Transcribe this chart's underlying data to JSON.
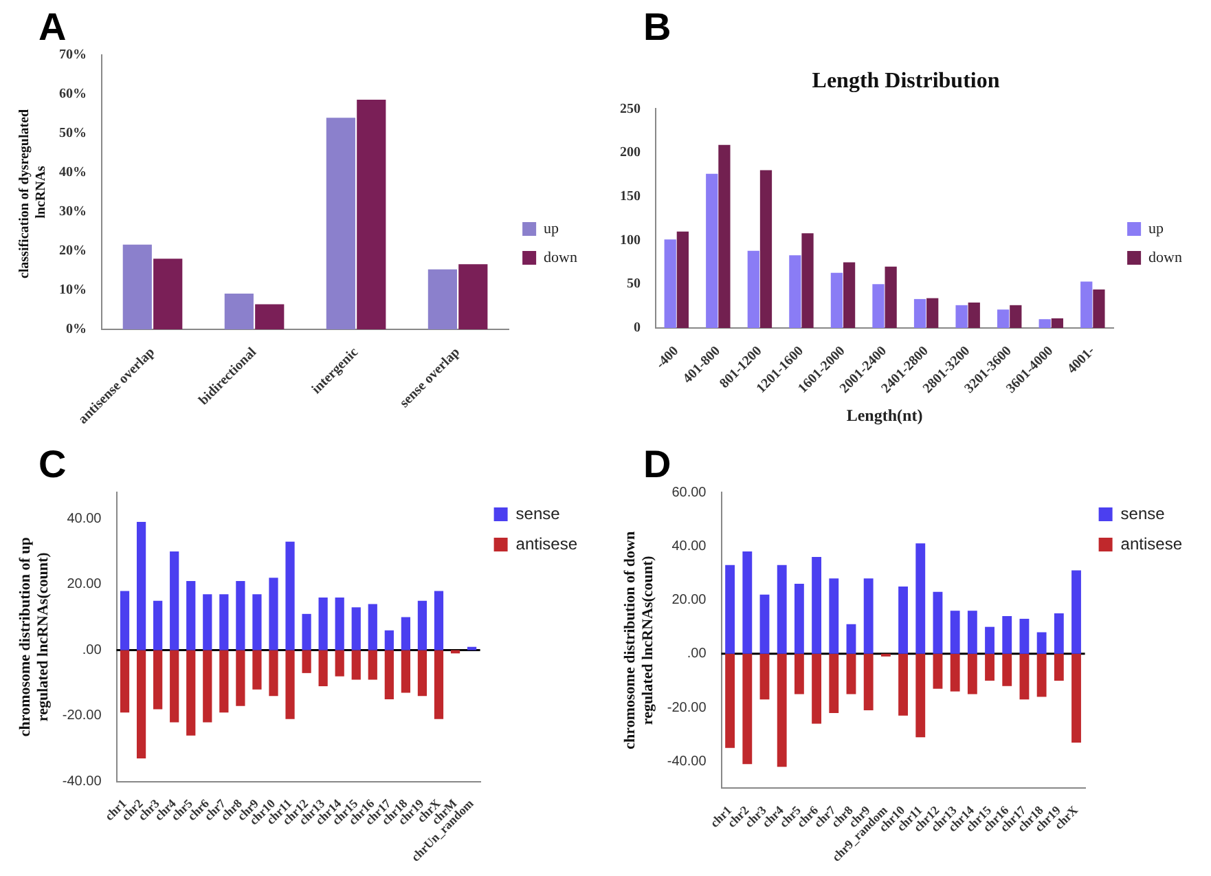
{
  "chart_data": [
    {
      "type": "bar",
      "annotations": [
        "A"
      ],
      "ylabel": "classification of dysregulated  lncRNAs",
      "categories": [
        "antisense overlap",
        "bidirectional",
        "intergenic",
        "sense overlap"
      ],
      "series": [
        {
          "name": "up",
          "color": "#8b80cc",
          "values": [
            21.6,
            9.1,
            54,
            15.3
          ]
        },
        {
          "name": "down",
          "color": "#7a1f57",
          "values": [
            18,
            6.4,
            58.6,
            16.6
          ]
        }
      ],
      "ylim": [
        0,
        70
      ],
      "yticks": [
        {
          "value": 0,
          "label": "0%"
        },
        {
          "value": 10,
          "label": "10%"
        },
        {
          "value": 20,
          "label": "20%"
        },
        {
          "value": 30,
          "label": "30%"
        },
        {
          "value": 40,
          "label": "40%"
        },
        {
          "value": 50,
          "label": "50%"
        },
        {
          "value": 60,
          "label": "60%"
        },
        {
          "value": 70,
          "label": "70%"
        }
      ],
      "legend": "right",
      "grid": false
    },
    {
      "type": "bar",
      "annotations": [
        "B"
      ],
      "title": "Length Distribution",
      "xlabel": "Length(nt)",
      "categories": [
        "-400",
        "401-800",
        "801-1200",
        "1201-1600",
        "1601-2000",
        "2001-2400",
        "2401-2800",
        "2801-3200",
        "3201-3600",
        "3601-4000",
        "4001-"
      ],
      "series": [
        {
          "name": "up",
          "color": "#8a7cf5",
          "values": [
            101,
            176,
            88,
            83,
            63,
            50,
            33,
            26,
            21,
            10,
            53
          ]
        },
        {
          "name": "down",
          "color": "#722050",
          "values": [
            110,
            209,
            180,
            108,
            75,
            70,
            34,
            29,
            26,
            11,
            44
          ]
        }
      ],
      "ylim": [
        0,
        250
      ],
      "yticks": [
        0,
        50,
        100,
        150,
        200,
        250
      ],
      "legend": "right",
      "grid": false
    },
    {
      "type": "bar",
      "annotations": [
        "C"
      ],
      "ylabel": "chromosome distribution of up regulated lncRNAs(count)",
      "stacked": true,
      "categories": [
        "chr1",
        "chr2",
        "chr3",
        "chr4",
        "chr5",
        "chr6",
        "chr7",
        "chr8",
        "chr9",
        "chr10",
        "chr11",
        "chr12",
        "chr13",
        "chr14",
        "chr15",
        "chr16",
        "chr17",
        "chr18",
        "chr19",
        "chrX",
        "chrM",
        "chrUn_random"
      ],
      "series": [
        {
          "name": "sense",
          "color": "#4b3ff0",
          "values": [
            18,
            39,
            15,
            30,
            21,
            17,
            17,
            21,
            17,
            22,
            33,
            11,
            16,
            16,
            13,
            14,
            6,
            10,
            15,
            18,
            0,
            1
          ]
        },
        {
          "name": "antisese",
          "color": "#c0282c",
          "values": [
            -19,
            -33,
            -18,
            -22,
            -26,
            -22,
            -19,
            -17,
            -12,
            -14,
            -21,
            -7,
            -11,
            -8,
            -9,
            -9,
            -15,
            -13,
            -14,
            -21,
            -1,
            0
          ]
        }
      ],
      "ref_lines": [
        {
          "axis": "y",
          "value": 0,
          "color": "#000000"
        }
      ],
      "ylim": [
        -40,
        48
      ],
      "yticks": [
        {
          "value": -40,
          "label": "-40.00"
        },
        {
          "value": -20,
          "label": "-20.00"
        },
        {
          "value": 0,
          "label": ".00"
        },
        {
          "value": 20,
          "label": "20.00"
        },
        {
          "value": 40,
          "label": "40.00"
        }
      ],
      "legend": "top right",
      "grid": false
    },
    {
      "type": "bar",
      "annotations": [
        "D"
      ],
      "ylabel": "chromosome distribution of down regulated lncRNAs(count)",
      "stacked": true,
      "categories": [
        "chr1",
        "chr2",
        "chr3",
        "chr4",
        "chr5",
        "chr6",
        "chr7",
        "chr8",
        "chr9",
        "chr9_random",
        "chr10",
        "chr11",
        "chr12",
        "chr13",
        "chr14",
        "chr15",
        "chr16",
        "chr17",
        "chr18",
        "chr19",
        "chrX"
      ],
      "series": [
        {
          "name": "sense",
          "color": "#4b3ff0",
          "values": [
            33,
            38,
            22,
            33,
            26,
            36,
            28,
            11,
            28,
            0,
            25,
            41,
            23,
            16,
            16,
            10,
            14,
            13,
            8,
            15,
            31
          ]
        },
        {
          "name": "antisese",
          "color": "#c0282c",
          "values": [
            -35,
            -41,
            -17,
            -42,
            -15,
            -26,
            -22,
            -15,
            -21,
            -1,
            -23,
            -31,
            -13,
            -14,
            -15,
            -10,
            -12,
            -17,
            -16,
            -10,
            -33
          ]
        }
      ],
      "ref_lines": [
        {
          "axis": "y",
          "value": 0,
          "color": "#000000"
        }
      ],
      "ylim": [
        -50,
        60
      ],
      "yticks": [
        {
          "value": -40,
          "label": "-40.00"
        },
        {
          "value": -20,
          "label": "-20.00"
        },
        {
          "value": 0,
          "label": ".00"
        },
        {
          "value": 20,
          "label": "20.00"
        },
        {
          "value": 40,
          "label": "40.00"
        },
        {
          "value": 60,
          "label": "60.00"
        }
      ],
      "legend": "top right",
      "grid": false
    }
  ]
}
